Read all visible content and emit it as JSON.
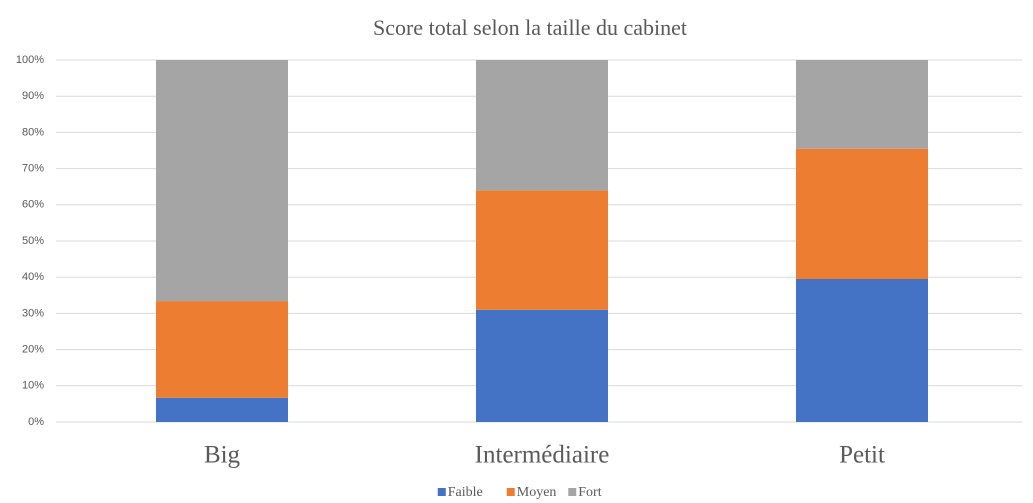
{
  "chart_data": {
    "type": "stacked_bar",
    "title": "Score total selon la taille du cabinet",
    "categories": [
      "Big",
      "Intermédiaire",
      "Petit"
    ],
    "series": [
      {
        "name": "Faible",
        "color": "#4472c4",
        "values": [
          6.7,
          31,
          39.5
        ]
      },
      {
        "name": "Moyen",
        "color": "#ed7d31",
        "values": [
          26.7,
          33,
          36
        ]
      },
      {
        "name": "Fort",
        "color": "#a5a5a5",
        "values": [
          66.6,
          36,
          24.5
        ]
      }
    ],
    "ylim": [
      0,
      100
    ],
    "yticks": [
      {
        "value": 0,
        "label": "0%"
      },
      {
        "value": 10,
        "label": "10%"
      },
      {
        "value": 20,
        "label": "20%"
      },
      {
        "value": 30,
        "label": "30%"
      },
      {
        "value": 40,
        "label": "40%"
      },
      {
        "value": 50,
        "label": "50%"
      },
      {
        "value": 60,
        "label": "60%"
      },
      {
        "value": 70,
        "label": "70%"
      },
      {
        "value": 80,
        "label": "80%"
      },
      {
        "value": 90,
        "label": "90%"
      },
      {
        "value": 100,
        "label": "100%"
      }
    ],
    "grid": true,
    "legend": "bottom"
  }
}
